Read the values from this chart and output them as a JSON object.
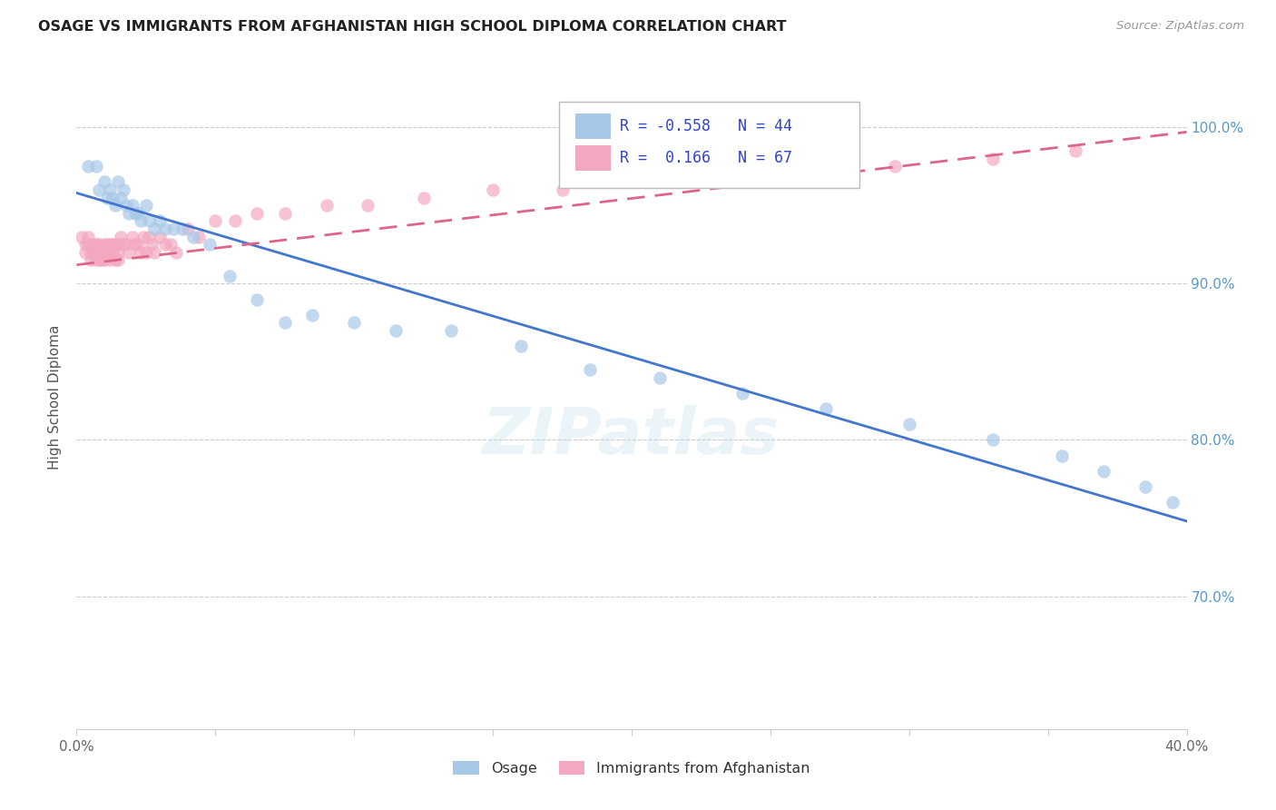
{
  "title": "OSAGE VS IMMIGRANTS FROM AFGHANISTAN HIGH SCHOOL DIPLOMA CORRELATION CHART",
  "source": "Source: ZipAtlas.com",
  "ylabel": "High School Diploma",
  "ytick_labels": [
    "100.0%",
    "90.0%",
    "80.0%",
    "70.0%"
  ],
  "ytick_values": [
    1.0,
    0.9,
    0.8,
    0.7
  ],
  "xlim": [
    0.0,
    0.4
  ],
  "ylim": [
    0.615,
    1.04
  ],
  "legend_blue_R": "R = -0.558",
  "legend_blue_N": "N = 44",
  "legend_pink_R": "R =  0.166",
  "legend_pink_N": "N = 67",
  "legend_label_blue": "Osage",
  "legend_label_pink": "Immigrants from Afghanistan",
  "blue_color": "#a8c8e8",
  "pink_color": "#f4a8c0",
  "blue_line_color": "#4477cc",
  "pink_line_color": "#dd6688",
  "watermark": "ZIPatlas",
  "blue_scatter_x": [
    0.004,
    0.007,
    0.008,
    0.01,
    0.011,
    0.012,
    0.013,
    0.014,
    0.015,
    0.016,
    0.017,
    0.018,
    0.019,
    0.02,
    0.021,
    0.022,
    0.023,
    0.025,
    0.026,
    0.028,
    0.03,
    0.032,
    0.035,
    0.038,
    0.042,
    0.048,
    0.055,
    0.065,
    0.075,
    0.085,
    0.1,
    0.115,
    0.135,
    0.16,
    0.185,
    0.21,
    0.24,
    0.27,
    0.3,
    0.33,
    0.355,
    0.37,
    0.385,
    0.395
  ],
  "blue_scatter_y": [
    0.975,
    0.975,
    0.96,
    0.965,
    0.955,
    0.96,
    0.955,
    0.95,
    0.965,
    0.955,
    0.96,
    0.95,
    0.945,
    0.95,
    0.945,
    0.945,
    0.94,
    0.95,
    0.94,
    0.935,
    0.94,
    0.935,
    0.935,
    0.935,
    0.93,
    0.925,
    0.905,
    0.89,
    0.875,
    0.88,
    0.875,
    0.87,
    0.87,
    0.86,
    0.845,
    0.84,
    0.83,
    0.82,
    0.81,
    0.8,
    0.79,
    0.78,
    0.77,
    0.76
  ],
  "pink_scatter_x": [
    0.002,
    0.003,
    0.003,
    0.004,
    0.004,
    0.005,
    0.005,
    0.005,
    0.006,
    0.006,
    0.007,
    0.007,
    0.007,
    0.008,
    0.008,
    0.008,
    0.009,
    0.009,
    0.01,
    0.01,
    0.01,
    0.011,
    0.011,
    0.012,
    0.012,
    0.012,
    0.013,
    0.013,
    0.014,
    0.014,
    0.015,
    0.015,
    0.015,
    0.016,
    0.017,
    0.018,
    0.019,
    0.02,
    0.021,
    0.022,
    0.023,
    0.024,
    0.025,
    0.026,
    0.027,
    0.028,
    0.03,
    0.032,
    0.034,
    0.036,
    0.04,
    0.044,
    0.05,
    0.057,
    0.065,
    0.075,
    0.09,
    0.105,
    0.125,
    0.15,
    0.175,
    0.2,
    0.23,
    0.26,
    0.295,
    0.33,
    0.36
  ],
  "pink_scatter_y": [
    0.93,
    0.92,
    0.925,
    0.93,
    0.925,
    0.925,
    0.92,
    0.915,
    0.92,
    0.925,
    0.925,
    0.92,
    0.915,
    0.92,
    0.925,
    0.915,
    0.92,
    0.915,
    0.925,
    0.92,
    0.915,
    0.925,
    0.92,
    0.925,
    0.92,
    0.915,
    0.925,
    0.92,
    0.925,
    0.915,
    0.925,
    0.92,
    0.915,
    0.93,
    0.925,
    0.925,
    0.92,
    0.93,
    0.925,
    0.925,
    0.92,
    0.93,
    0.92,
    0.93,
    0.925,
    0.92,
    0.93,
    0.925,
    0.925,
    0.92,
    0.935,
    0.93,
    0.94,
    0.94,
    0.945,
    0.945,
    0.95,
    0.95,
    0.955,
    0.96,
    0.96,
    0.965,
    0.968,
    0.97,
    0.975,
    0.98,
    0.985
  ],
  "blue_trend_x": [
    0.0,
    0.4
  ],
  "blue_trend_y": [
    0.958,
    0.748
  ],
  "pink_trend_x": [
    0.0,
    0.4
  ],
  "pink_trend_y": [
    0.912,
    0.997
  ]
}
